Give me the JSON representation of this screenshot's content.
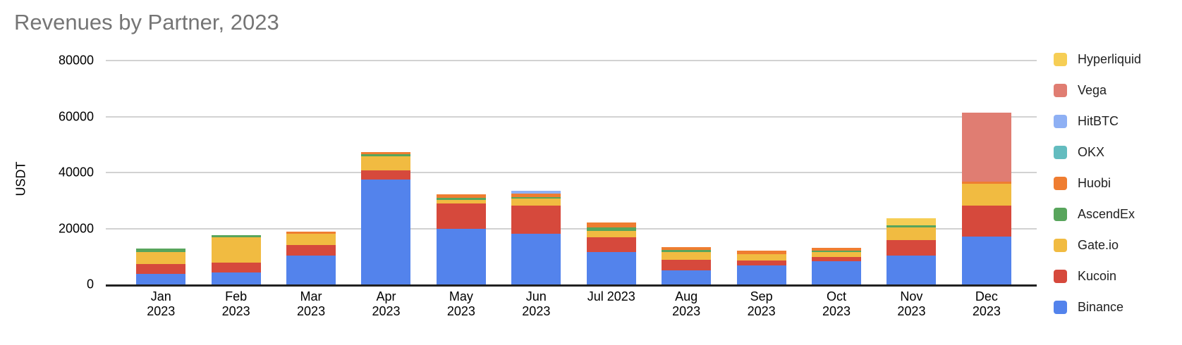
{
  "title": "Revenues by Partner, 2023",
  "chart_data": {
    "type": "bar",
    "stacked": true,
    "title": "Revenues by Partner, 2023",
    "xlabel": "",
    "ylabel": "USDT",
    "ylim": [
      0,
      80000
    ],
    "yticks": [
      0,
      20000,
      40000,
      60000,
      80000
    ],
    "grid": true,
    "legend_position": "right",
    "categories": [
      "Jan 2023",
      "Feb 2023",
      "Mar 2023",
      "Apr 2023",
      "May 2023",
      "Jun 2023",
      "Jul 2023",
      "Aug 2023",
      "Sep 2023",
      "Oct 2023",
      "Nov 2023",
      "Dec 2023"
    ],
    "x_tick_labels": [
      "Jan\n2023",
      "Feb\n2023",
      "Mar\n2023",
      "Apr\n2023",
      "May\n2023",
      "Jun\n2023",
      "Jul 2023",
      "Aug\n2023",
      "Sep\n2023",
      "Oct\n2023",
      "Nov\n2023",
      "Dec\n2023"
    ],
    "legend_order_top_to_bottom": [
      "Hyperliquid",
      "Vega",
      "HitBTC",
      "OKX",
      "Huobi",
      "AscendEx",
      "Gate.io",
      "Kucoin",
      "Binance"
    ],
    "series": [
      {
        "name": "Binance",
        "color": "#5383EC",
        "values": [
          3700,
          4300,
          10400,
          37600,
          19800,
          18100,
          11500,
          5000,
          6700,
          8200,
          10400,
          17200
        ]
      },
      {
        "name": "Kucoin",
        "color": "#D6493C",
        "values": [
          3500,
          3600,
          3600,
          3200,
          9100,
          10100,
          5400,
          3900,
          1800,
          1700,
          5500,
          10900
        ]
      },
      {
        "name": "Gate.io",
        "color": "#F1BB41",
        "values": [
          4400,
          9000,
          4200,
          4900,
          1400,
          2400,
          2250,
          2700,
          2300,
          1700,
          4600,
          8000
        ]
      },
      {
        "name": "AscendEx",
        "color": "#58A55C",
        "values": [
          1200,
          700,
          0,
          750,
          750,
          700,
          1250,
          700,
          0,
          600,
          750,
          0
        ]
      },
      {
        "name": "Huobi",
        "color": "#EF7D31",
        "values": [
          0,
          0,
          750,
          750,
          1250,
          1250,
          1700,
          1000,
          1400,
          1000,
          0,
          700
        ]
      },
      {
        "name": "OKX",
        "color": "#63BCBF",
        "values": [
          0,
          0,
          0,
          0,
          0,
          0,
          0,
          0,
          0,
          0,
          0,
          0
        ]
      },
      {
        "name": "HitBTC",
        "color": "#8EB0F4",
        "values": [
          0,
          0,
          0,
          0,
          0,
          1000,
          0,
          0,
          0,
          0,
          0,
          0
        ]
      },
      {
        "name": "Vega",
        "color": "#E07D72",
        "values": [
          0,
          0,
          0,
          0,
          0,
          0,
          0,
          0,
          0,
          0,
          0,
          24500
        ]
      },
      {
        "name": "Hyperliquid",
        "color": "#F6CE55",
        "values": [
          0,
          0,
          0,
          0,
          0,
          0,
          0,
          0,
          0,
          0,
          2500,
          0
        ]
      }
    ],
    "monthly_totals": [
      12800,
      17600,
      18950,
      47200,
      32300,
      33550,
      22100,
      13300,
      12200,
      13200,
      23750,
      61300
    ],
    "colors": {
      "title_text": "#757575",
      "gridline": "#d2d2d2",
      "axis_line": "#212121",
      "tick_text": "#000000"
    }
  }
}
